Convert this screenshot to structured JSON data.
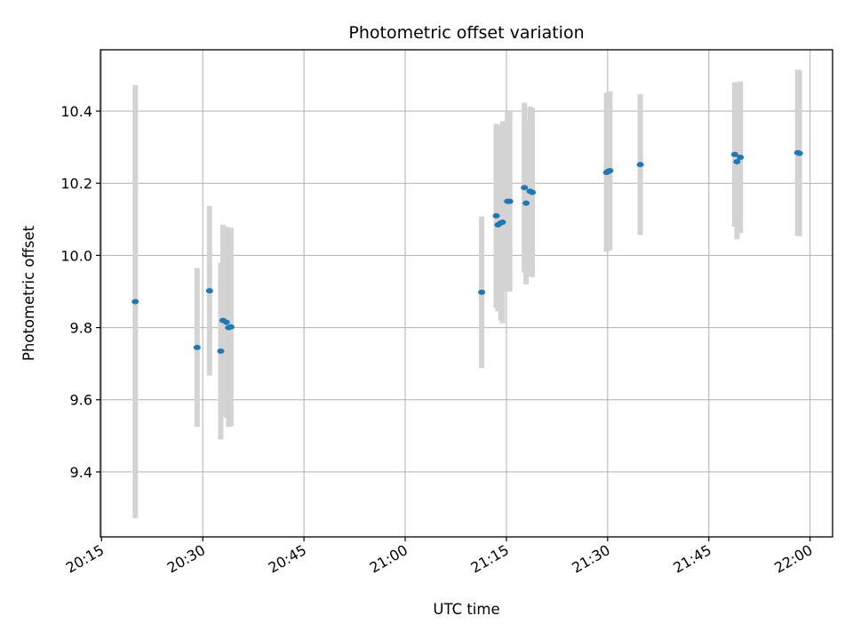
{
  "chart_data": {
    "type": "scatter",
    "title": "Photometric offset variation",
    "xlabel": "UTC time",
    "ylabel": "Photometric offset",
    "x_ticks": [
      "20:15",
      "20:30",
      "20:45",
      "21:00",
      "21:15",
      "21:30",
      "21:45",
      "22:00"
    ],
    "y_ticks": [
      "9.4",
      "9.6",
      "9.8",
      "10.0",
      "10.2",
      "10.4"
    ],
    "xlim": [
      "20:14:50",
      "22:03:20"
    ],
    "ylim": [
      9.22,
      10.57
    ],
    "grid": true,
    "series": [
      {
        "marker_color": "#1f77b4",
        "errorbar_color": "#d3d3d3",
        "points": [
          {
            "x": "20:20:00",
            "y": 9.872,
            "yerr": 0.6
          },
          {
            "x": "20:29:10",
            "y": 9.745,
            "yerr": 0.22
          },
          {
            "x": "20:31:00",
            "y": 9.902,
            "yerr": 0.235
          },
          {
            "x": "20:32:40",
            "y": 9.735,
            "yerr": 0.245
          },
          {
            "x": "20:33:00",
            "y": 9.82,
            "yerr": 0.265
          },
          {
            "x": "20:33:30",
            "y": 9.815,
            "yerr": 0.265
          },
          {
            "x": "20:33:50",
            "y": 9.8,
            "yerr": 0.275
          },
          {
            "x": "20:34:10",
            "y": 9.802,
            "yerr": 0.275
          },
          {
            "x": "21:11:20",
            "y": 9.898,
            "yerr": 0.21
          },
          {
            "x": "21:13:30",
            "y": 10.11,
            "yerr": 0.255
          },
          {
            "x": "21:13:45",
            "y": 10.085,
            "yerr": 0.24
          },
          {
            "x": "21:14:10",
            "y": 10.09,
            "yerr": 0.27
          },
          {
            "x": "21:14:25",
            "y": 10.092,
            "yerr": 0.28
          },
          {
            "x": "21:15:10",
            "y": 10.15,
            "yerr": 0.25
          },
          {
            "x": "21:15:30",
            "y": 10.15,
            "yerr": 0.25
          },
          {
            "x": "21:17:40",
            "y": 10.188,
            "yerr": 0.235
          },
          {
            "x": "21:17:55",
            "y": 10.145,
            "yerr": 0.225
          },
          {
            "x": "21:18:30",
            "y": 10.178,
            "yerr": 0.235
          },
          {
            "x": "21:18:50",
            "y": 10.175,
            "yerr": 0.235
          },
          {
            "x": "21:29:50",
            "y": 10.23,
            "yerr": 0.22
          },
          {
            "x": "21:30:05",
            "y": 10.233,
            "yerr": 0.22
          },
          {
            "x": "21:30:20",
            "y": 10.235,
            "yerr": 0.22
          },
          {
            "x": "21:34:50",
            "y": 10.252,
            "yerr": 0.195
          },
          {
            "x": "21:48:50",
            "y": 10.28,
            "yerr": 0.2
          },
          {
            "x": "21:49:10",
            "y": 10.26,
            "yerr": 0.215
          },
          {
            "x": "21:49:40",
            "y": 10.272,
            "yerr": 0.21
          },
          {
            "x": "21:58:10",
            "y": 10.285,
            "yerr": 0.23
          },
          {
            "x": "21:58:25",
            "y": 10.283,
            "yerr": 0.23
          }
        ]
      }
    ]
  }
}
